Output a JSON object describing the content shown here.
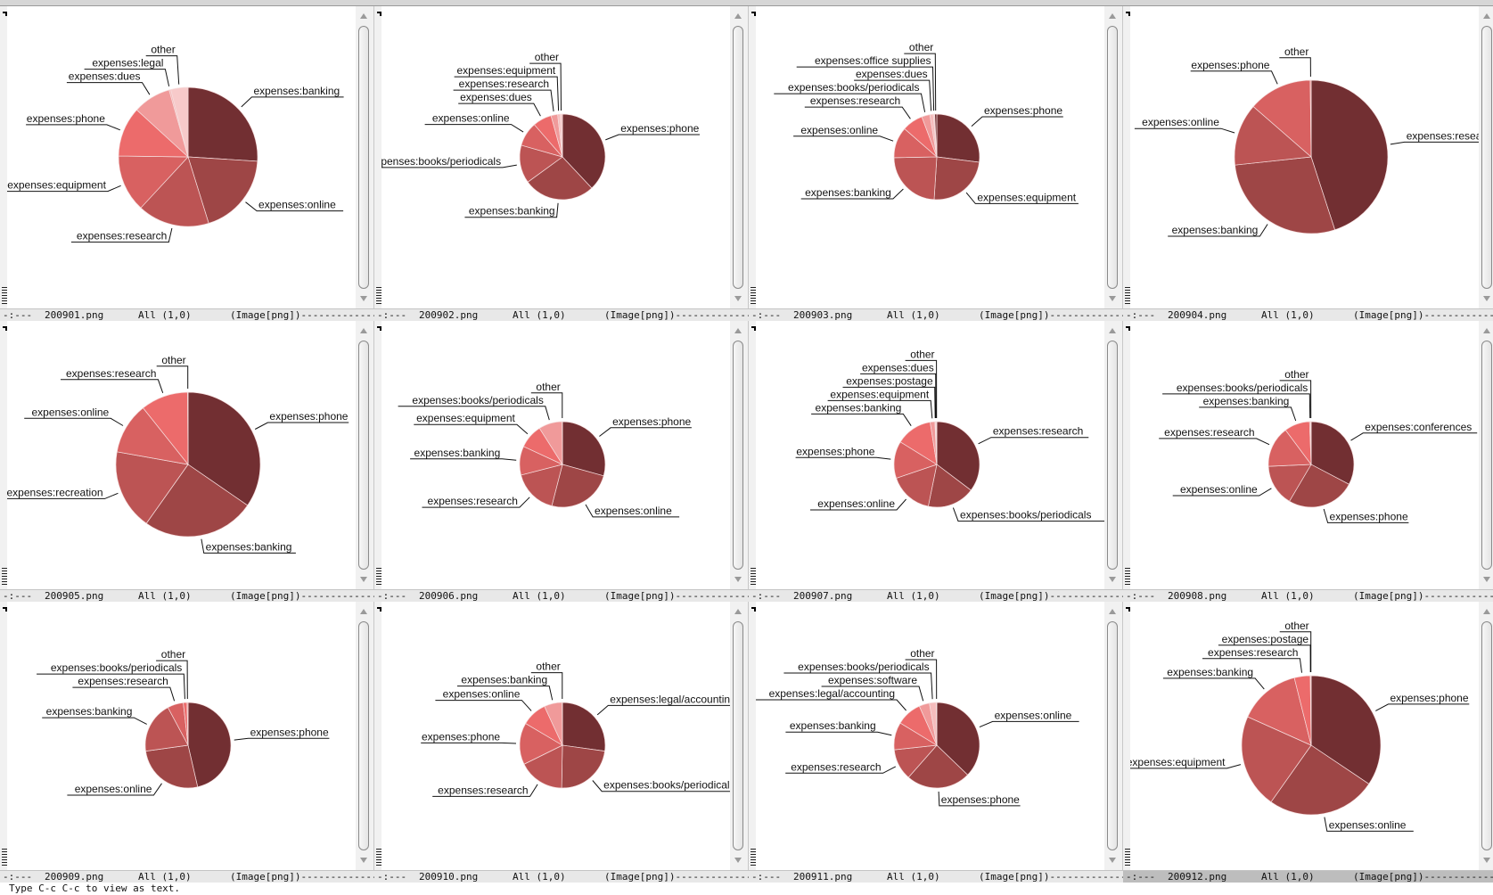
{
  "echo_area": "Type C-c C-c to view as text.",
  "colors": {
    "palette": [
      "#722f32",
      "#9e4646",
      "#bc5454",
      "#d86161",
      "#ec6b6b",
      "#f09a9a",
      "#f5bcbc",
      "#f7caca",
      "#722f32"
    ],
    "modeline_bg": "#e8e8e8",
    "modeline_active_bg": "#bdbdbd"
  },
  "windows": [
    {
      "buffer": "200901.png",
      "status": "-:---",
      "position": "All (1,0)",
      "mode": "(Image[png])------------------------",
      "active": false
    },
    {
      "buffer": "200902.png",
      "status": "-:---",
      "position": "All (1,0)",
      "mode": "(Image[png])------------------------",
      "active": false
    },
    {
      "buffer": "200903.png",
      "status": "-:---",
      "position": "All (1,0)",
      "mode": "(Image[png])------------------------",
      "active": false
    },
    {
      "buffer": "200904.png",
      "status": "-:---",
      "position": "All (1,0)",
      "mode": "(Image[png])------------------------",
      "active": false
    },
    {
      "buffer": "200905.png",
      "status": "-:---",
      "position": "All (1,0)",
      "mode": "(Image[png])------------------------",
      "active": false
    },
    {
      "buffer": "200906.png",
      "status": "-:---",
      "position": "All (1,0)",
      "mode": "(Image[png])------------------------",
      "active": false
    },
    {
      "buffer": "200907.png",
      "status": "-:---",
      "position": "All (1,0)",
      "mode": "(Image[png])------------------------",
      "active": false
    },
    {
      "buffer": "200908.png",
      "status": "-:---",
      "position": "All (1,0)",
      "mode": "(Image[png])------------------------",
      "active": false
    },
    {
      "buffer": "200909.png",
      "status": "-:---",
      "position": "All (1,0)",
      "mode": "(Image[png])------------------------",
      "active": false
    },
    {
      "buffer": "200910.png",
      "status": "-:---",
      "position": "All (1,0)",
      "mode": "(Image[png])------------------------",
      "active": false
    },
    {
      "buffer": "200911.png",
      "status": "-:---",
      "position": "All (1,0)",
      "mode": "(Image[png])------------------------",
      "active": false
    },
    {
      "buffer": "200912.png",
      "status": "-:---",
      "position": "All (1,0)",
      "mode": "(Image[png])------------------------",
      "active": true
    }
  ],
  "chart_data": [
    {
      "type": "pie",
      "labels": [
        "expenses:banking",
        "expenses:online",
        "expenses:research",
        "expenses:equipment",
        "expenses:phone",
        "expenses:dues",
        "expenses:legal",
        "other"
      ],
      "values": [
        26,
        19.2,
        16.7,
        13.3,
        11.6,
        8.8,
        0.4,
        4.0
      ]
    },
    {
      "type": "pie",
      "labels": [
        "expenses:phone",
        "expenses:banking",
        "expenses:books/periodicals",
        "expenses:online",
        "expenses:dues",
        "expenses:research",
        "expenses:equipment",
        "other"
      ],
      "values": [
        38,
        27,
        14.4,
        9.2,
        7.1,
        2.5,
        0.9,
        0.9
      ]
    },
    {
      "type": "pie",
      "labels": [
        "expenses:phone",
        "expenses:equipment",
        "expenses:banking",
        "expenses:online",
        "expenses:research",
        "expenses:books/periodicals",
        "expenses:dues",
        "expenses:office supplies",
        "other"
      ],
      "values": [
        27,
        24,
        23.7,
        11.7,
        7.9,
        3.1,
        1.3,
        0.5,
        0.8
      ]
    },
    {
      "type": "pie",
      "labels": [
        "expenses:research",
        "expenses:banking",
        "expenses:online",
        "expenses:phone",
        "other"
      ],
      "values": [
        45,
        28.3,
        13.1,
        13.4,
        0.2
      ]
    },
    {
      "type": "pie",
      "labels": [
        "expenses:phone",
        "expenses:banking",
        "expenses:recreation",
        "expenses:online",
        "expenses:research",
        "other"
      ],
      "values": [
        34.6,
        25.2,
        18,
        11.5,
        10.6,
        0.1
      ]
    },
    {
      "type": "pie",
      "labels": [
        "expenses:phone",
        "expenses:online",
        "expenses:research",
        "expenses:banking",
        "expenses:equipment",
        "expenses:books/periodicals",
        "other"
      ],
      "values": [
        29.3,
        24.7,
        17,
        10.9,
        9.1,
        8.9,
        0.1
      ]
    },
    {
      "type": "pie",
      "labels": [
        "expenses:research",
        "expenses:books/periodicals",
        "expenses:online",
        "expenses:phone",
        "expenses:banking",
        "expenses:equipment",
        "expenses:postage",
        "expenses:dues",
        "other"
      ],
      "values": [
        35.3,
        17.9,
        16.6,
        14,
        13.7,
        1.8,
        0.3,
        0.2,
        0.2
      ]
    },
    {
      "type": "pie",
      "labels": [
        "expenses:conferences",
        "expenses:phone",
        "expenses:online",
        "expenses:research",
        "expenses:banking",
        "expenses:books/periodicals",
        "other"
      ],
      "values": [
        32.7,
        25.8,
        15.8,
        15.5,
        9.6,
        0.4,
        0.2
      ]
    },
    {
      "type": "pie",
      "labels": [
        "expenses:phone",
        "expenses:online",
        "expenses:banking",
        "expenses:research",
        "expenses:books/periodicals",
        "other"
      ],
      "values": [
        46.4,
        26.4,
        19.4,
        6,
        1.4,
        0.4
      ]
    },
    {
      "type": "pie",
      "labels": [
        "expenses:legal/accounting",
        "expenses:books/periodicals",
        "expenses:research",
        "expenses:phone",
        "expenses:online",
        "expenses:banking",
        "other"
      ],
      "values": [
        27.2,
        23.1,
        17.4,
        15.8,
        9.6,
        6.8,
        0.1
      ]
    },
    {
      "type": "pie",
      "labels": [
        "expenses:online",
        "expenses:phone",
        "expenses:research",
        "expenses:banking",
        "expenses:legal/accounting",
        "expenses:software",
        "expenses:books/periodicals",
        "other"
      ],
      "values": [
        37.2,
        24.3,
        11.8,
        10.4,
        9.6,
        3.9,
        2.6,
        0.2
      ]
    },
    {
      "type": "pie",
      "labels": [
        "expenses:phone",
        "expenses:online",
        "expenses:equipment",
        "expenses:banking",
        "expenses:research",
        "expenses:postage",
        "other"
      ],
      "values": [
        34.4,
        25.4,
        21.9,
        14.4,
        3.7,
        0.1,
        0.1
      ]
    }
  ]
}
